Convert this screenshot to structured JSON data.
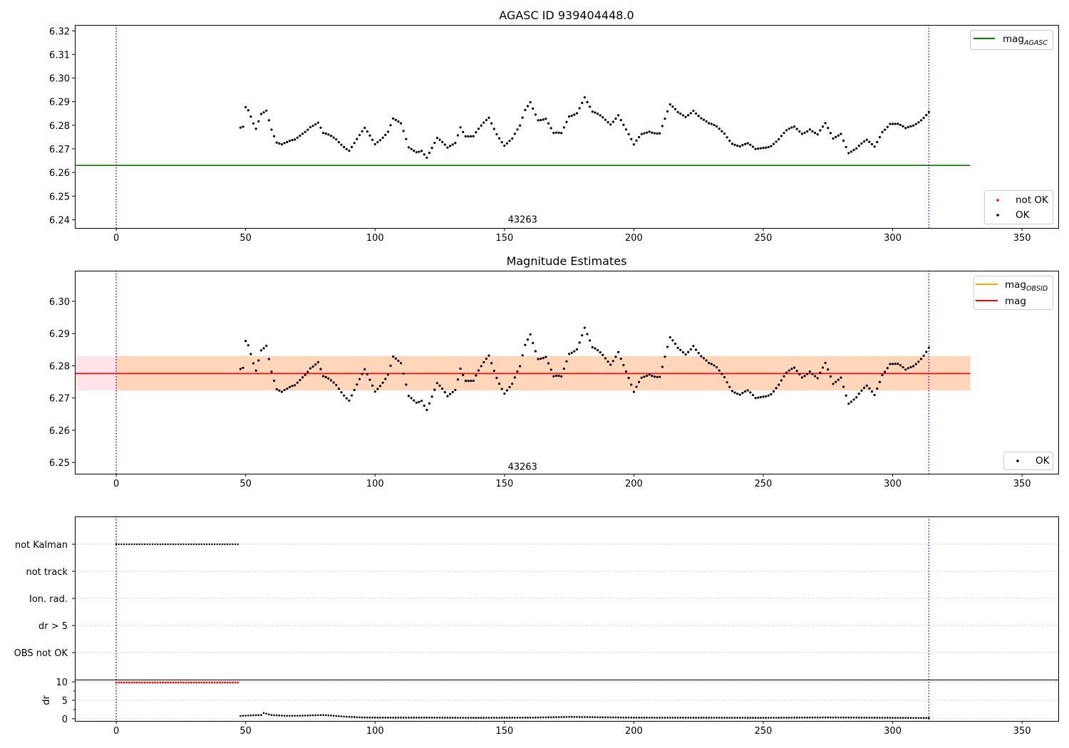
{
  "chart_data": [
    {
      "type": "scatter",
      "title": "AGASC ID 939404448.0",
      "obsid_label": "43263",
      "xlim": [
        -16,
        364
      ],
      "ylim": [
        6.2365,
        6.3225
      ],
      "x_ticks": [
        0,
        50,
        100,
        150,
        200,
        250,
        300,
        350
      ],
      "y_ticks": [
        6.24,
        6.25,
        6.26,
        6.27,
        6.28,
        6.29,
        6.3,
        6.31,
        6.32
      ],
      "y_tick_labels": [
        "6.24",
        "6.25",
        "6.26",
        "6.27",
        "6.28",
        "6.29",
        "6.30",
        "6.31",
        "6.32"
      ],
      "vlines": [
        0,
        314
      ],
      "hlines": [
        {
          "name": "mag",
          "sub": "AGASC",
          "y": 6.263,
          "x_range": [
            -16,
            330
          ],
          "color": "#008000"
        }
      ],
      "legend_upper": [
        {
          "name": "mag",
          "sub": "AGASC",
          "color": "#008000"
        }
      ],
      "legend_lower": [
        {
          "name": "not OK",
          "color": "#ff0000"
        },
        {
          "name": "OK",
          "color": "#000000"
        }
      ]
    },
    {
      "type": "scatter",
      "title": "Magnitude Estimates",
      "obsid_label": "43263",
      "xlim": [
        -16,
        364
      ],
      "ylim": [
        6.2465,
        6.3095
      ],
      "x_ticks": [
        0,
        50,
        100,
        150,
        200,
        250,
        300,
        350
      ],
      "y_ticks": [
        6.25,
        6.26,
        6.27,
        6.28,
        6.29,
        6.3
      ],
      "y_tick_labels": [
        "6.25",
        "6.26",
        "6.27",
        "6.28",
        "6.29",
        "6.30"
      ],
      "vlines": [
        0,
        314
      ],
      "hlines": [
        {
          "name": "mag",
          "sub": "",
          "y": 6.2776,
          "x_range": [
            -16,
            330
          ],
          "color": "#ff0000"
        }
      ],
      "bands": [
        {
          "name": "mag",
          "y_range": [
            6.2723,
            6.283
          ],
          "x_range": [
            -16,
            330
          ],
          "color": "#ffc0cb",
          "opacity": 0.45
        },
        {
          "name": "mag OBSID",
          "y_range": [
            6.2723,
            6.283
          ],
          "x_range": [
            0,
            330
          ],
          "color": "#ffa500",
          "opacity": 0.2
        }
      ],
      "legend_upper": [
        {
          "name": "mag",
          "sub": "OBSID",
          "color": "#ffa500"
        },
        {
          "name": "mag",
          "sub": "",
          "color": "#ff0000"
        }
      ],
      "legend_lower": [
        {
          "name": "OK",
          "color": "#000000"
        }
      ]
    },
    {
      "type": "scatter",
      "title": "",
      "xlim": [
        -16,
        364
      ],
      "x_ticks": [
        0,
        50,
        100,
        150,
        200,
        250,
        300,
        350
      ],
      "vlines": [
        0,
        314
      ],
      "flag_rows": [
        "not Kalman",
        "not track",
        "Ion. rad.",
        "dr > 5",
        "OBS not OK"
      ],
      "flag_points": [
        {
          "row": "not Kalman",
          "x_range": [
            0,
            47.5
          ],
          "step": 1
        }
      ],
      "dr_panel": {
        "ylabel": "dr",
        "ylim": [
          -0.6,
          10.4
        ],
        "y_ticks": [
          0,
          5,
          10
        ],
        "minor_y_ticks": [
          2.5,
          7.5
        ],
        "red_points": {
          "x_range": [
            0,
            47.5
          ],
          "step": 1,
          "y": 9.8,
          "color": "#ff0000"
        },
        "black_points": {
          "x_range": [
            48,
            314
          ],
          "step": 1,
          "color": "#000000",
          "x": [
            48,
            52,
            56,
            57,
            60,
            65,
            70,
            75,
            80,
            85,
            90,
            95,
            100,
            120,
            140,
            160,
            175,
            200,
            250,
            275,
            300,
            314
          ],
          "y": [
            0.75,
            0.9,
            1.0,
            1.55,
            1.0,
            0.8,
            0.8,
            0.9,
            1.0,
            0.75,
            0.5,
            0.35,
            0.3,
            0.3,
            0.25,
            0.3,
            0.5,
            0.3,
            0.25,
            0.35,
            0.25,
            0.2
          ]
        }
      }
    }
  ],
  "magnitude_series": {
    "name": "OK",
    "x_range": [
      48,
      314
    ],
    "step": 1,
    "x": [
      48,
      49,
      50,
      51,
      53,
      54,
      56,
      58,
      60,
      62,
      64,
      66,
      69,
      72,
      75,
      78,
      80,
      85,
      90,
      93,
      96,
      100,
      105,
      107,
      110,
      113,
      116,
      118,
      120,
      124,
      128,
      131,
      133,
      135,
      138,
      141,
      144,
      147,
      150,
      153,
      156,
      158,
      160,
      163,
      166,
      169,
      172,
      175,
      178,
      181,
      184,
      188,
      191,
      194,
      197,
      200,
      203,
      206,
      210,
      214,
      217,
      220,
      223,
      226,
      229,
      232,
      235,
      238,
      241,
      244,
      247,
      250,
      253,
      256,
      259,
      262,
      265,
      268,
      271,
      274,
      277,
      280,
      283,
      286,
      290,
      293,
      296,
      299,
      302,
      305,
      308,
      311,
      314
    ],
    "y": [
      6.279,
      6.279,
      6.287,
      6.2855,
      6.28,
      6.278,
      6.285,
      6.287,
      6.279,
      6.273,
      6.2715,
      6.272,
      6.2735,
      6.277,
      6.28,
      6.281,
      6.276,
      6.274,
      6.27,
      6.274,
      6.278,
      6.272,
      6.278,
      6.283,
      6.28,
      6.27,
      6.269,
      6.27,
      6.267,
      6.274,
      6.27,
      6.273,
      6.28,
      6.276,
      6.275,
      6.279,
      6.283,
      6.277,
      6.272,
      6.274,
      6.279,
      6.286,
      6.29,
      6.283,
      6.283,
      6.276,
      6.276,
      6.284,
      6.286,
      6.292,
      6.285,
      6.283,
      6.281,
      6.285,
      6.278,
      6.271,
      6.276,
      6.278,
      6.277,
      6.288,
      6.285,
      6.284,
      6.287,
      6.283,
      6.28,
      6.279,
      6.277,
      6.273,
      6.271,
      6.2715,
      6.2695,
      6.271,
      6.272,
      6.274,
      6.277,
      6.279,
      6.277,
      6.279,
      6.276,
      6.28,
      6.274,
      6.277,
      6.269,
      6.27,
      6.273,
      6.271,
      6.278,
      6.281,
      6.28,
      6.278,
      6.28,
      6.283,
      6.286
    ]
  }
}
